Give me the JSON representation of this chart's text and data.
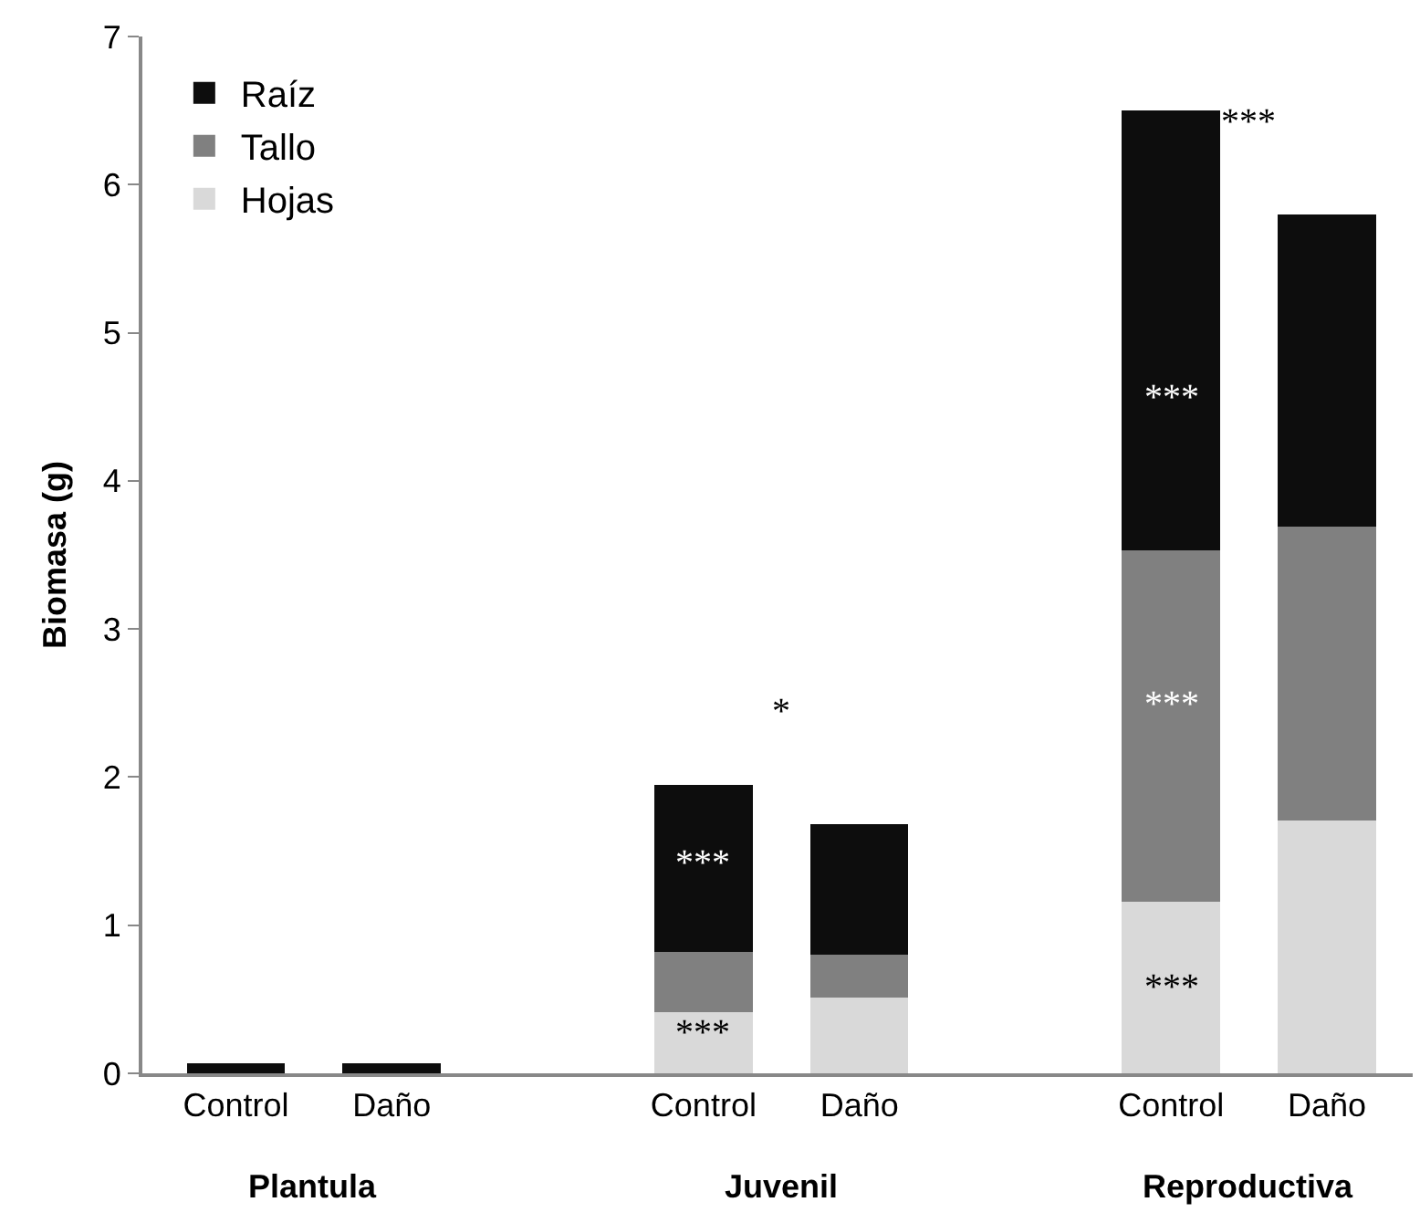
{
  "chart_data": {
    "type": "bar",
    "stacked": true,
    "ylabel": "Biomasa (g)",
    "categories": [
      "Control",
      "Daño",
      null,
      "Control",
      "Daño",
      null,
      "Control",
      "Daño"
    ],
    "series": [
      {
        "name": "Hojas",
        "color": "#d9d9d9",
        "values": [
          0,
          0,
          null,
          0.41,
          0.51,
          null,
          1.16,
          1.71
        ]
      },
      {
        "name": "Tallo",
        "color": "#808080",
        "values": [
          0,
          0,
          null,
          0.41,
          0.29,
          null,
          2.37,
          1.98
        ]
      },
      {
        "name": "Raíz",
        "color": "#0d0d0d",
        "values": [
          0.07,
          0.07,
          null,
          1.13,
          0.88,
          null,
          2.97,
          2.11
        ]
      }
    ],
    "ylim": [
      0,
      7
    ],
    "yticks": [
      0,
      1,
      2,
      3,
      4,
      5,
      6,
      7
    ],
    "legend": "top left",
    "annotations": [
      "Plantula",
      "Juvenil",
      "Reproductiva",
      "*",
      "***",
      "***",
      "***",
      "***",
      "***",
      "***"
    ]
  }
}
